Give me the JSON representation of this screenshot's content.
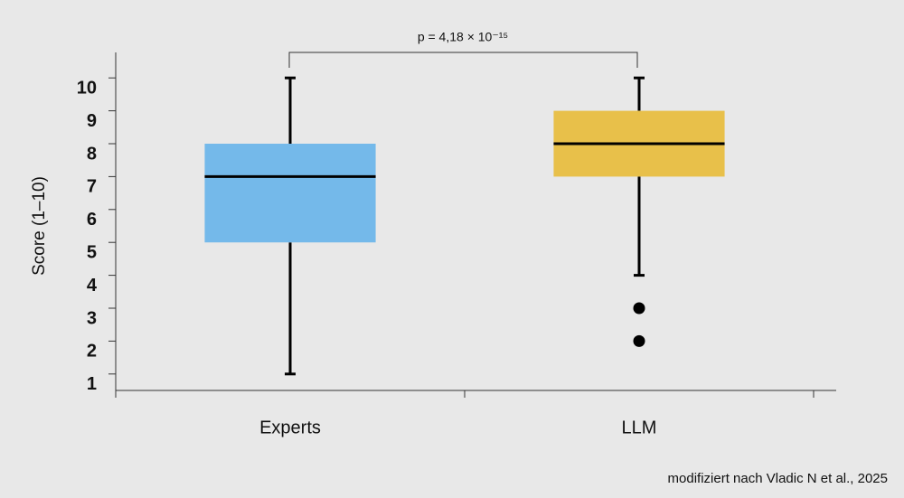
{
  "chart_data": {
    "type": "box",
    "y_label": "Score (1–10)",
    "annotation": "p = 4,18 × 10⁻¹⁵",
    "source": "modifiziert nach Vladic N et al., 2025",
    "categories": [
      "Experts",
      "LLM"
    ],
    "colors": [
      "#74b9ea",
      "#e8c04a"
    ],
    "boxes": [
      {
        "whislo": 1,
        "q1": 5,
        "med": 7,
        "q3": 8,
        "whishi": 10,
        "fliers": []
      },
      {
        "whislo": 4,
        "q1": 7,
        "med": 8,
        "q3": 9,
        "whishi": 10,
        "fliers": [
          3,
          2
        ]
      }
    ],
    "ylim": [
      0.5,
      10.5
    ],
    "yticks": [
      1,
      2,
      3,
      4,
      5,
      6,
      7,
      8,
      9,
      10
    ]
  }
}
